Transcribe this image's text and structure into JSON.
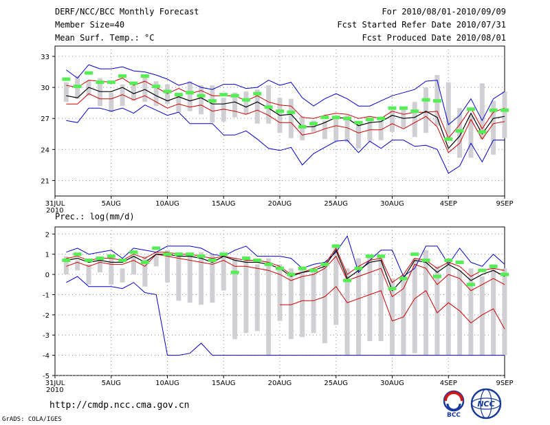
{
  "header": {
    "title": "DERF/NCC/BCC Monthly Forecast",
    "member_size": "Member Size=40",
    "variable": "Mean Surf. Temp.: °C",
    "period": "For 2010/08/01-2010/09/09",
    "started": "Fcst Started Refer Date 2010/07/31",
    "produced": "Fcst Produced Date 2010/08/01"
  },
  "footer": {
    "url": "http://cmdp.ncc.cma.gov.cn",
    "grads": "GrADS: COLA/IGES",
    "logo_bcc": "BCC",
    "logo_ncc": "NCC"
  },
  "colors": {
    "max_min": "#0000cc",
    "std": "#cc0000",
    "mean": "#000000",
    "box": "#d0d0d4",
    "obs": "#55ee55"
  },
  "chart_data": [
    {
      "id": "temp",
      "type": "line",
      "ylabel": "Mean Surf. Temp.: °C",
      "ylim": [
        19.5,
        34.0
      ],
      "yticks": [
        21,
        24,
        27,
        30,
        33
      ],
      "x_ticks": [
        {
          "i": 0,
          "label": "31JUL",
          "sub": "2010"
        },
        {
          "i": 5,
          "label": "5AUG"
        },
        {
          "i": 10,
          "label": "10AUG"
        },
        {
          "i": 15,
          "label": "15AUG"
        },
        {
          "i": 20,
          "label": "20AUG"
        },
        {
          "i": 25,
          "label": "25AUG"
        },
        {
          "i": 30,
          "label": "30AUG"
        },
        {
          "i": 35,
          "label": "4SEP"
        },
        {
          "i": 40,
          "label": "9SEP"
        }
      ],
      "n_days": 41,
      "series": [
        {
          "name": "max",
          "values": [
            null,
            31.7,
            30.9,
            32.2,
            31.8,
            31.8,
            32.0,
            31.6,
            31.5,
            31.2,
            30.8,
            30.2,
            30.5,
            30.0,
            29.8,
            30.3,
            30.3,
            29.9,
            30.0,
            30.7,
            30.2,
            30.5,
            29.0,
            28.2,
            28.9,
            29.4,
            28.9,
            28.2,
            28.2,
            28.7,
            29.2,
            29.5,
            29.8,
            30.6,
            30.7,
            26.4,
            27.3,
            28.9,
            26.8,
            28.9,
            29.6
          ]
        },
        {
          "name": "std_upper",
          "values": [
            null,
            30.2,
            30.0,
            30.7,
            30.6,
            30.5,
            30.9,
            30.2,
            30.6,
            30.0,
            29.4,
            29.9,
            29.4,
            29.7,
            29.2,
            29.2,
            29.2,
            28.7,
            29.2,
            28.6,
            28.3,
            28.2,
            27.1,
            27.0,
            27.3,
            27.5,
            27.4,
            27.0,
            27.2,
            27.0,
            27.7,
            27.4,
            27.6,
            27.6,
            27.7,
            25.1,
            26.4,
            28.0,
            26.0,
            27.6,
            28.0
          ]
        },
        {
          "name": "mean",
          "values": [
            null,
            29.2,
            29.0,
            30.0,
            29.6,
            29.6,
            30.0,
            29.4,
            29.8,
            29.2,
            28.7,
            29.1,
            28.7,
            29.0,
            28.4,
            28.4,
            28.6,
            28.1,
            28.6,
            28.0,
            27.3,
            27.4,
            26.2,
            26.2,
            26.6,
            27.1,
            27.0,
            26.3,
            26.6,
            26.7,
            27.3,
            27.0,
            27.1,
            27.7,
            27.1,
            24.1,
            25.3,
            27.5,
            25.5,
            27.0,
            27.2
          ]
        },
        {
          "name": "std_lower",
          "values": [
            null,
            28.4,
            28.4,
            29.4,
            28.9,
            28.9,
            29.3,
            28.8,
            29.2,
            28.6,
            28.0,
            28.4,
            28.1,
            28.3,
            27.7,
            27.9,
            27.7,
            27.4,
            27.8,
            27.3,
            26.6,
            26.6,
            25.4,
            25.6,
            26.0,
            26.3,
            26.1,
            25.6,
            25.9,
            25.9,
            26.5,
            26.0,
            26.6,
            27.2,
            26.2,
            23.7,
            24.6,
            26.9,
            25.0,
            26.5,
            26.7
          ]
        },
        {
          "name": "min",
          "values": [
            null,
            26.8,
            26.6,
            28.0,
            28.0,
            27.7,
            28.0,
            27.5,
            28.3,
            27.8,
            27.3,
            27.6,
            26.5,
            26.5,
            26.5,
            25.4,
            25.4,
            25.8,
            25.0,
            24.1,
            23.9,
            24.2,
            22.5,
            23.6,
            24.2,
            24.8,
            24.9,
            23.7,
            24.8,
            24.1,
            24.9,
            24.9,
            24.3,
            24.4,
            24.0,
            21.7,
            22.4,
            24.6,
            22.8,
            24.9,
            24.9
          ]
        },
        {
          "name": "box_top",
          "values": [
            null,
            30.5,
            31.1,
            30.7,
            30.9,
            29.5,
            30.3,
            30.2,
            31.0,
            30.6,
            30.3,
            29.5,
            30.6,
            30.2,
            30.2,
            29.0,
            29.5,
            29.6,
            29.8,
            30.2,
            29.0,
            28.9,
            27.2,
            26.8,
            26.8,
            27.1,
            27.3,
            26.6,
            27.1,
            26.8,
            27.8,
            27.9,
            28.6,
            30.0,
            31.2,
            30.5,
            28.0,
            27.3,
            30.4,
            28.7,
            29.6
          ]
        },
        {
          "name": "box_bottom",
          "values": [
            null,
            28.6,
            28.9,
            29.2,
            28.2,
            27.6,
            28.2,
            28.7,
            28.6,
            28.2,
            28.4,
            27.6,
            27.7,
            27.4,
            26.6,
            26.7,
            27.1,
            27.4,
            26.5,
            26.5,
            25.6,
            25.1,
            24.9,
            25.7,
            25.0,
            24.8,
            24.7,
            24.1,
            24.8,
            24.9,
            25.7,
            26.1,
            25.2,
            25.6,
            26.3,
            24.9,
            23.2,
            23.2,
            25.0,
            23.5,
            25.1
          ]
        },
        {
          "name": "observed",
          "values": [
            null,
            30.8,
            30.1,
            31.4,
            30.5,
            30.5,
            31.1,
            30.4,
            31.1,
            30.1,
            29.6,
            29.3,
            29.5,
            29.2,
            28.7,
            29.3,
            29.2,
            28.8,
            29.4,
            28.1,
            27.7,
            27.6,
            26.2,
            26.5,
            27.1,
            27.1,
            27.0,
            26.6,
            26.9,
            27.0,
            28.0,
            28.0,
            27.7,
            28.8,
            28.7,
            25.0,
            25.8,
            27.9,
            25.7,
            27.8,
            27.8
          ]
        }
      ]
    },
    {
      "id": "prec",
      "type": "line",
      "ylabel": "Prec.: log(mm/d)",
      "ylim": [
        -5,
        2.35
      ],
      "yticks": [
        -5,
        -4,
        -3,
        -2,
        -1,
        0,
        1,
        2
      ],
      "x_ticks": [
        {
          "i": 0,
          "label": "31JUL",
          "sub": "2010"
        },
        {
          "i": 5,
          "label": "5AUG"
        },
        {
          "i": 10,
          "label": "10AUG"
        },
        {
          "i": 15,
          "label": "15AUG"
        },
        {
          "i": 20,
          "label": "20AUG"
        },
        {
          "i": 25,
          "label": "25AUG"
        },
        {
          "i": 30,
          "label": "30AUG"
        },
        {
          "i": 35,
          "label": "4SEP"
        },
        {
          "i": 40,
          "label": "9SEP"
        }
      ],
      "n_days": 41,
      "series": [
        {
          "name": "max",
          "values": [
            null,
            1.1,
            1.3,
            1.0,
            1.1,
            1.2,
            0.8,
            1.3,
            1.2,
            1.1,
            1.4,
            1.4,
            1.4,
            1.3,
            1.0,
            0.9,
            1.2,
            1.4,
            0.9,
            0.9,
            0.9,
            0.8,
            0.3,
            0.5,
            0.6,
            1.1,
            1.9,
            0.1,
            0.7,
            1.2,
            1.2,
            -0.1,
            0.3,
            1.4,
            1.4,
            0.5,
            1.3,
            0.6,
            0.4,
            1.0,
            0.5
          ]
        },
        {
          "name": "std_upper",
          "values": [
            null,
            0.8,
            0.9,
            0.7,
            0.8,
            0.8,
            0.7,
            1.0,
            0.8,
            1.1,
            1.1,
            1.0,
            1.0,
            0.9,
            0.8,
            0.9,
            0.8,
            0.7,
            0.7,
            0.6,
            0.4,
            0.0,
            0.1,
            0.3,
            0.5,
            1.3,
            0.0,
            0.4,
            0.7,
            0.8,
            -0.4,
            0.0,
            0.8,
            0.7,
            0.3,
            0.6,
            0.4,
            -0.1,
            0.2,
            0.3,
            0.2
          ]
        },
        {
          "name": "mean",
          "values": [
            null,
            0.7,
            0.8,
            0.6,
            0.7,
            0.6,
            0.6,
            0.9,
            0.6,
            1.0,
            1.0,
            0.9,
            0.9,
            0.8,
            0.6,
            0.9,
            0.7,
            0.6,
            0.6,
            0.5,
            0.3,
            -0.1,
            0.1,
            0.2,
            0.4,
            1.2,
            -0.2,
            0.2,
            0.6,
            0.7,
            -0.8,
            -0.2,
            0.7,
            0.6,
            0.1,
            0.5,
            0.2,
            -0.3,
            0.0,
            0.2,
            -0.1
          ]
        },
        {
          "name": "std_lower",
          "values": [
            null,
            0.4,
            0.6,
            0.4,
            0.6,
            0.5,
            0.5,
            0.7,
            0.4,
            1.0,
            0.9,
            0.8,
            0.7,
            0.6,
            0.5,
            0.7,
            0.4,
            0.4,
            0.3,
            0.2,
            0.0,
            -0.3,
            -0.1,
            0.0,
            0.3,
            0.9,
            -0.3,
            -0.1,
            0.1,
            0.3,
            -1.1,
            -0.7,
            0.5,
            0.3,
            -0.5,
            0.0,
            -0.2,
            -0.8,
            -0.5,
            -0.2,
            -0.5
          ]
        },
        {
          "name": "min",
          "values": [
            null,
            -0.4,
            -0.1,
            -0.6,
            -0.6,
            -0.6,
            -0.7,
            -0.4,
            -0.9,
            -1.0,
            -4.0,
            -4.0,
            -3.9,
            -3.4,
            -4.0,
            -4.0,
            -4.0,
            -4.0,
            -4.0,
            -4.0,
            -4.0,
            -4.0,
            -4.0,
            -4.0,
            -4.0,
            -4.0,
            -4.0,
            -4.0,
            -4.0,
            -4.0,
            -4.0,
            -4.0,
            -4.0,
            -4.0,
            -4.0,
            -4.0,
            -4.0,
            -4.0,
            -4.0,
            -4.0,
            -4.0
          ]
        },
        {
          "name": "std_low_deep",
          "values": [
            null,
            null,
            null,
            null,
            null,
            null,
            null,
            null,
            null,
            null,
            null,
            null,
            null,
            null,
            null,
            null,
            null,
            null,
            null,
            null,
            -1.5,
            -1.5,
            -1.3,
            -1.3,
            -1.1,
            -0.6,
            -1.4,
            -1.2,
            -1.0,
            -0.8,
            -2.3,
            -2.1,
            -1.2,
            -0.8,
            -1.9,
            -1.4,
            -1.8,
            -2.4,
            -2.0,
            -1.7,
            -2.7
          ]
        },
        {
          "name": "box_top",
          "values": [
            null,
            0.9,
            0.7,
            0.5,
            0.7,
            0.8,
            0.3,
            0.9,
            0.9,
            1.1,
            1.2,
            1.1,
            1.0,
            1.1,
            1.0,
            0.9,
            0.8,
            0.7,
            0.5,
            0.8,
            0.5,
            0.3,
            0.4,
            0.3,
            0.5,
            1.5,
            0.3,
            0.8,
            0.9,
            0.8,
            -0.2,
            0.0,
            0.8,
            1.2,
            0.4,
            0.7,
            0.2,
            0.3,
            -0.1,
            0.5,
            0.3
          ]
        },
        {
          "name": "box_bottom",
          "values": [
            null,
            0.0,
            0.2,
            -0.5,
            0.1,
            -0.5,
            -0.4,
            0.0,
            -0.6,
            0.4,
            -0.4,
            -1.3,
            -1.4,
            -1.5,
            -1.4,
            -0.8,
            -3.2,
            -2.9,
            -2.8,
            -4.0,
            -2.3,
            -3.2,
            -3.1,
            -2.9,
            -3.4,
            -2.5,
            -4.0,
            -4.0,
            -3.3,
            -3.3,
            -4.0,
            -4.0,
            -3.9,
            -4.0,
            -4.0,
            -4.0,
            -4.0,
            -4.0,
            -4.0,
            -4.0,
            -4.0
          ]
        },
        {
          "name": "observed",
          "values": [
            null,
            0.7,
            1.0,
            0.7,
            0.8,
            0.9,
            0.7,
            1.1,
            0.6,
            1.3,
            1.0,
            1.0,
            1.0,
            0.9,
            0.7,
            1.0,
            0.1,
            0.8,
            0.7,
            0.5,
            0.3,
            0.0,
            0.3,
            0.2,
            0.5,
            1.4,
            -0.3,
            0.3,
            0.9,
            0.9,
            -0.7,
            -0.2,
            1.0,
            0.7,
            -0.1,
            0.7,
            0.6,
            -0.5,
            0.2,
            0.4,
            0.0
          ]
        }
      ]
    }
  ]
}
